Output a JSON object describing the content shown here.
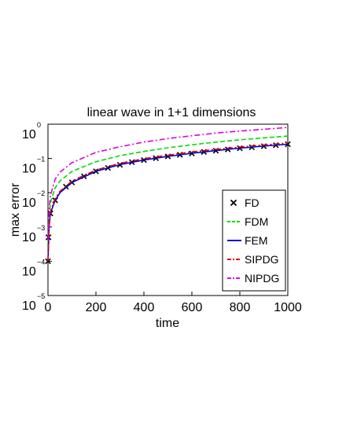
{
  "chart_data": {
    "type": "line",
    "title": "linear wave in 1+1 dimensions",
    "xlabel": "time",
    "ylabel": "max error",
    "xlim": [
      0,
      1000
    ],
    "ylim": [
      1e-05,
      1
    ],
    "yscale": "log",
    "x_ticks": [
      "0",
      "200",
      "400",
      "600",
      "800",
      "1000"
    ],
    "y_ticks": [
      {
        "base": "10",
        "exp": "0"
      },
      {
        "base": "10",
        "exp": "−1"
      },
      {
        "base": "10",
        "exp": "−2"
      },
      {
        "base": "10",
        "exp": "−3"
      },
      {
        "base": "10",
        "exp": "−4"
      },
      {
        "base": "10",
        "exp": "−5"
      }
    ],
    "grid": false,
    "legend_position": "right",
    "legend": [
      "FD",
      "FDM",
      "FEM",
      "SIPDG",
      "NIPDG"
    ],
    "series": [
      {
        "name": "FD",
        "color": "#000000",
        "style": "markers-x",
        "x": [
          0,
          2,
          10,
          30,
          75,
          100,
          150,
          200,
          250,
          300,
          350,
          400,
          450,
          500,
          550,
          600,
          650,
          700,
          750,
          800,
          850,
          900,
          950,
          1000
        ],
        "y": [
          0.0001,
          0.0005,
          0.0025,
          0.006,
          0.015,
          0.02,
          0.03,
          0.042,
          0.053,
          0.065,
          0.078,
          0.09,
          0.102,
          0.115,
          0.128,
          0.14,
          0.155,
          0.168,
          0.183,
          0.198,
          0.212,
          0.228,
          0.244,
          0.26
        ]
      },
      {
        "name": "FDM",
        "color": "#00dd00",
        "style": "dash",
        "x": [
          0,
          5,
          10,
          30,
          50,
          100,
          200,
          300,
          400,
          500,
          600,
          700,
          800,
          900,
          1000
        ],
        "y": [
          0.0003,
          0.002,
          0.005,
          0.014,
          0.022,
          0.042,
          0.08,
          0.12,
          0.16,
          0.205,
          0.25,
          0.3,
          0.35,
          0.4,
          0.45
        ]
      },
      {
        "name": "FEM",
        "color": "#0000cc",
        "style": "solid",
        "x": [
          0,
          5,
          10,
          30,
          50,
          100,
          200,
          300,
          400,
          500,
          600,
          700,
          800,
          900,
          1000
        ],
        "y": [
          0.0001,
          0.001,
          0.0025,
          0.006,
          0.01,
          0.02,
          0.042,
          0.066,
          0.09,
          0.115,
          0.142,
          0.17,
          0.2,
          0.23,
          0.26
        ]
      },
      {
        "name": "SIPDG",
        "color": "#dd0000",
        "style": "dashdot",
        "x": [
          0,
          5,
          10,
          30,
          50,
          100,
          200,
          300,
          400,
          500,
          600,
          700,
          800,
          900,
          1000
        ],
        "y": [
          0.0001,
          0.0011,
          0.0028,
          0.0068,
          0.011,
          0.022,
          0.046,
          0.072,
          0.098,
          0.125,
          0.155,
          0.185,
          0.215,
          0.248,
          0.28
        ]
      },
      {
        "name": "NIPDG",
        "color": "#dd00dd",
        "style": "dashdot",
        "x": [
          0,
          5,
          10,
          30,
          50,
          100,
          200,
          300,
          400,
          500,
          600,
          700,
          800,
          900,
          1000
        ],
        "y": [
          0.0004,
          0.003,
          0.008,
          0.025,
          0.04,
          0.075,
          0.15,
          0.22,
          0.3,
          0.38,
          0.46,
          0.55,
          0.63,
          0.71,
          0.8
        ]
      }
    ]
  }
}
